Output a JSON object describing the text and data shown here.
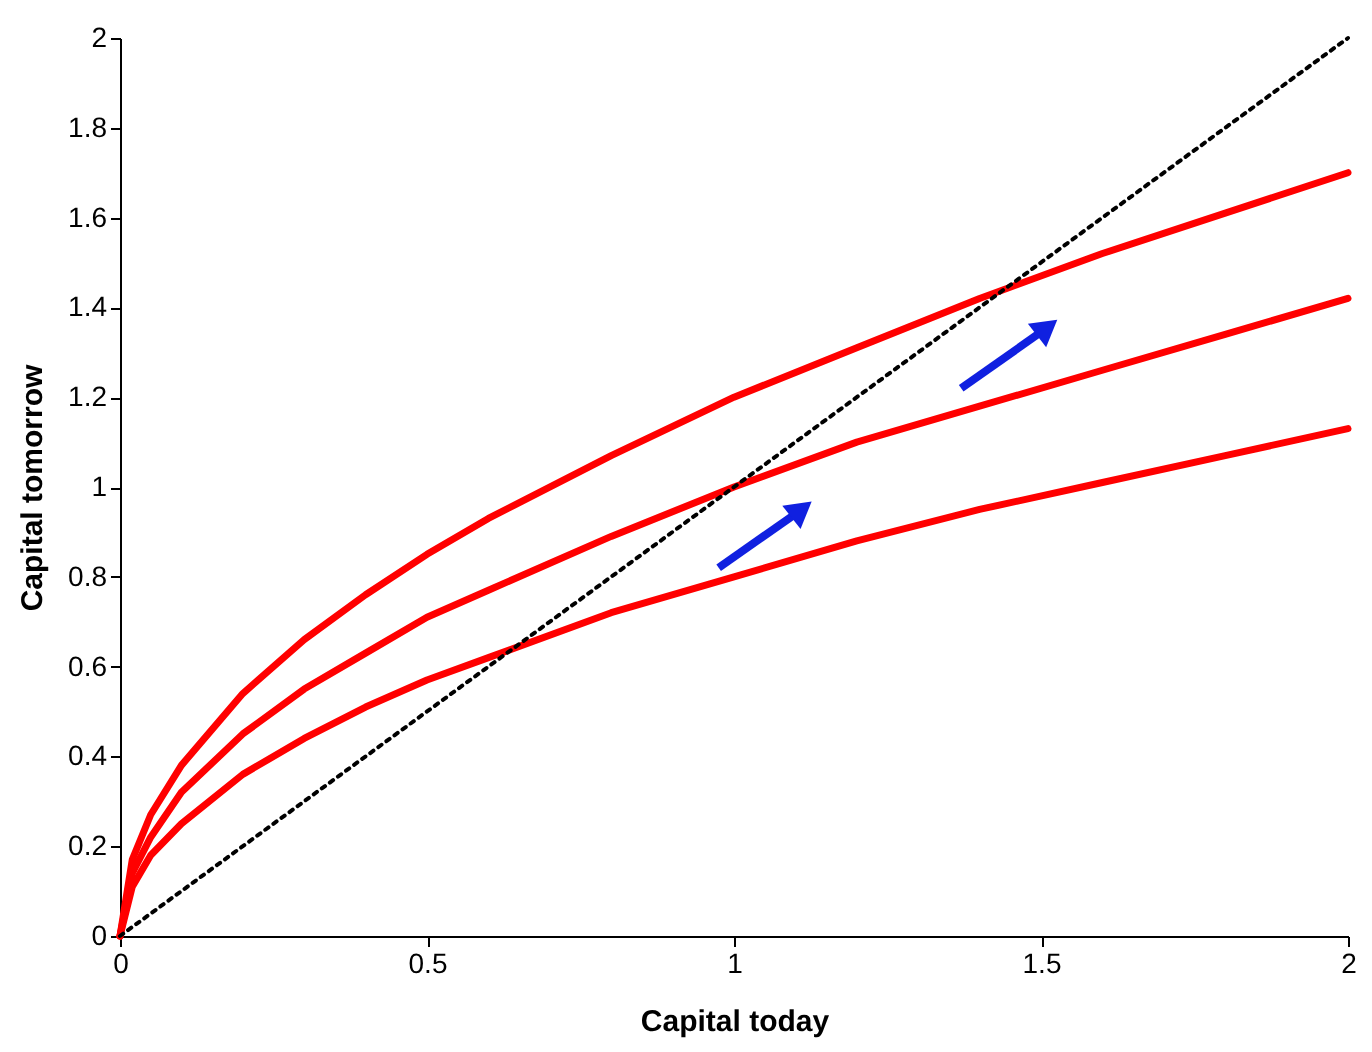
{
  "chart_data": {
    "type": "line",
    "xlabel": "Capital today",
    "ylabel": "Capital tomorrow",
    "x": [
      0,
      0.02,
      0.05,
      0.1,
      0.2,
      0.3,
      0.4,
      0.5,
      0.6,
      0.8,
      1.0,
      1.2,
      1.4,
      1.6,
      1.8,
      2.0
    ],
    "series": [
      {
        "color": "#ff0000",
        "line_style": "solid",
        "values": [
          0,
          0.17,
          0.27,
          0.38,
          0.54,
          0.66,
          0.76,
          0.85,
          0.93,
          1.07,
          1.2,
          1.31,
          1.42,
          1.52,
          1.61,
          1.7
        ]
      },
      {
        "color": "#ff0000",
        "line_style": "solid",
        "values": [
          0,
          0.14,
          0.22,
          0.32,
          0.45,
          0.55,
          0.63,
          0.71,
          0.77,
          0.89,
          1.0,
          1.1,
          1.18,
          1.26,
          1.34,
          1.42
        ]
      },
      {
        "color": "#ff0000",
        "line_style": "solid",
        "values": [
          0,
          0.11,
          0.18,
          0.25,
          0.36,
          0.44,
          0.51,
          0.57,
          0.62,
          0.72,
          0.8,
          0.88,
          0.95,
          1.01,
          1.07,
          1.13
        ]
      },
      {
        "color": "#000000",
        "line_style": "dotted",
        "x": [
          0,
          2
        ],
        "values": [
          0,
          2
        ]
      }
    ],
    "xlim": [
      0,
      2
    ],
    "xticks": [
      0,
      0.5,
      1,
      1.5,
      2
    ],
    "ylim": [
      0,
      2
    ],
    "yticks": [
      0,
      0.2,
      0.4,
      0.6,
      0.8,
      1,
      1.2,
      1.4,
      1.6,
      1.8,
      2
    ],
    "grid": false,
    "marker": "none"
  }
}
